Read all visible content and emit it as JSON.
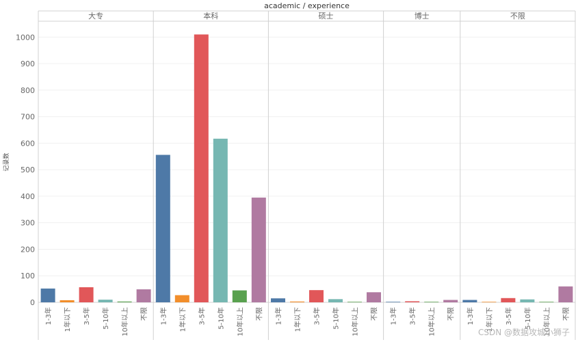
{
  "chart_data": {
    "type": "bar",
    "title": "academic / experience",
    "ylabel": "记录数",
    "xlabel": "",
    "ylim": [
      0,
      1060
    ],
    "yticks": [
      0,
      100,
      200,
      300,
      400,
      500,
      600,
      700,
      800,
      900,
      1000
    ],
    "grid": true,
    "legend": "none",
    "colors": {
      "1-3年": "#4e79a7",
      "1年以下": "#f28e2b",
      "3-5年": "#e15759",
      "5-10年": "#76b7b2",
      "10年以上": "#59a14f",
      "不限": "#b07aa1"
    },
    "panels": [
      {
        "name": "大专",
        "bars": [
          {
            "category": "1-3年",
            "value": 52
          },
          {
            "category": "1年以下",
            "value": 8
          },
          {
            "category": "3-5年",
            "value": 57
          },
          {
            "category": "5-10年",
            "value": 10
          },
          {
            "category": "10年以上",
            "value": 3
          },
          {
            "category": "不限",
            "value": 49
          }
        ]
      },
      {
        "name": "本科",
        "bars": [
          {
            "category": "1-3年",
            "value": 556
          },
          {
            "category": "1年以下",
            "value": 27
          },
          {
            "category": "3-5年",
            "value": 1010
          },
          {
            "category": "5-10年",
            "value": 617
          },
          {
            "category": "10年以上",
            "value": 45
          },
          {
            "category": "不限",
            "value": 395
          }
        ]
      },
      {
        "name": "硕士",
        "bars": [
          {
            "category": "1-3年",
            "value": 15
          },
          {
            "category": "1年以下",
            "value": 3
          },
          {
            "category": "3-5年",
            "value": 46
          },
          {
            "category": "5-10年",
            "value": 12
          },
          {
            "category": "10年以上",
            "value": 2
          },
          {
            "category": "不限",
            "value": 38
          }
        ]
      },
      {
        "name": "博士",
        "bars": [
          {
            "category": "1-3年",
            "value": 2
          },
          {
            "category": "3-5年",
            "value": 4
          },
          {
            "category": "10年以上",
            "value": 2
          },
          {
            "category": "不限",
            "value": 9
          }
        ]
      },
      {
        "name": "不限",
        "bars": [
          {
            "category": "1-3年",
            "value": 9
          },
          {
            "category": "1年以下",
            "value": 2
          },
          {
            "category": "3-5年",
            "value": 16
          },
          {
            "category": "5-10年",
            "value": 11
          },
          {
            "category": "10年以上",
            "value": 2
          },
          {
            "category": "不限",
            "value": 60
          }
        ]
      }
    ]
  },
  "watermark": "CSDN @数据攻城小狮子"
}
